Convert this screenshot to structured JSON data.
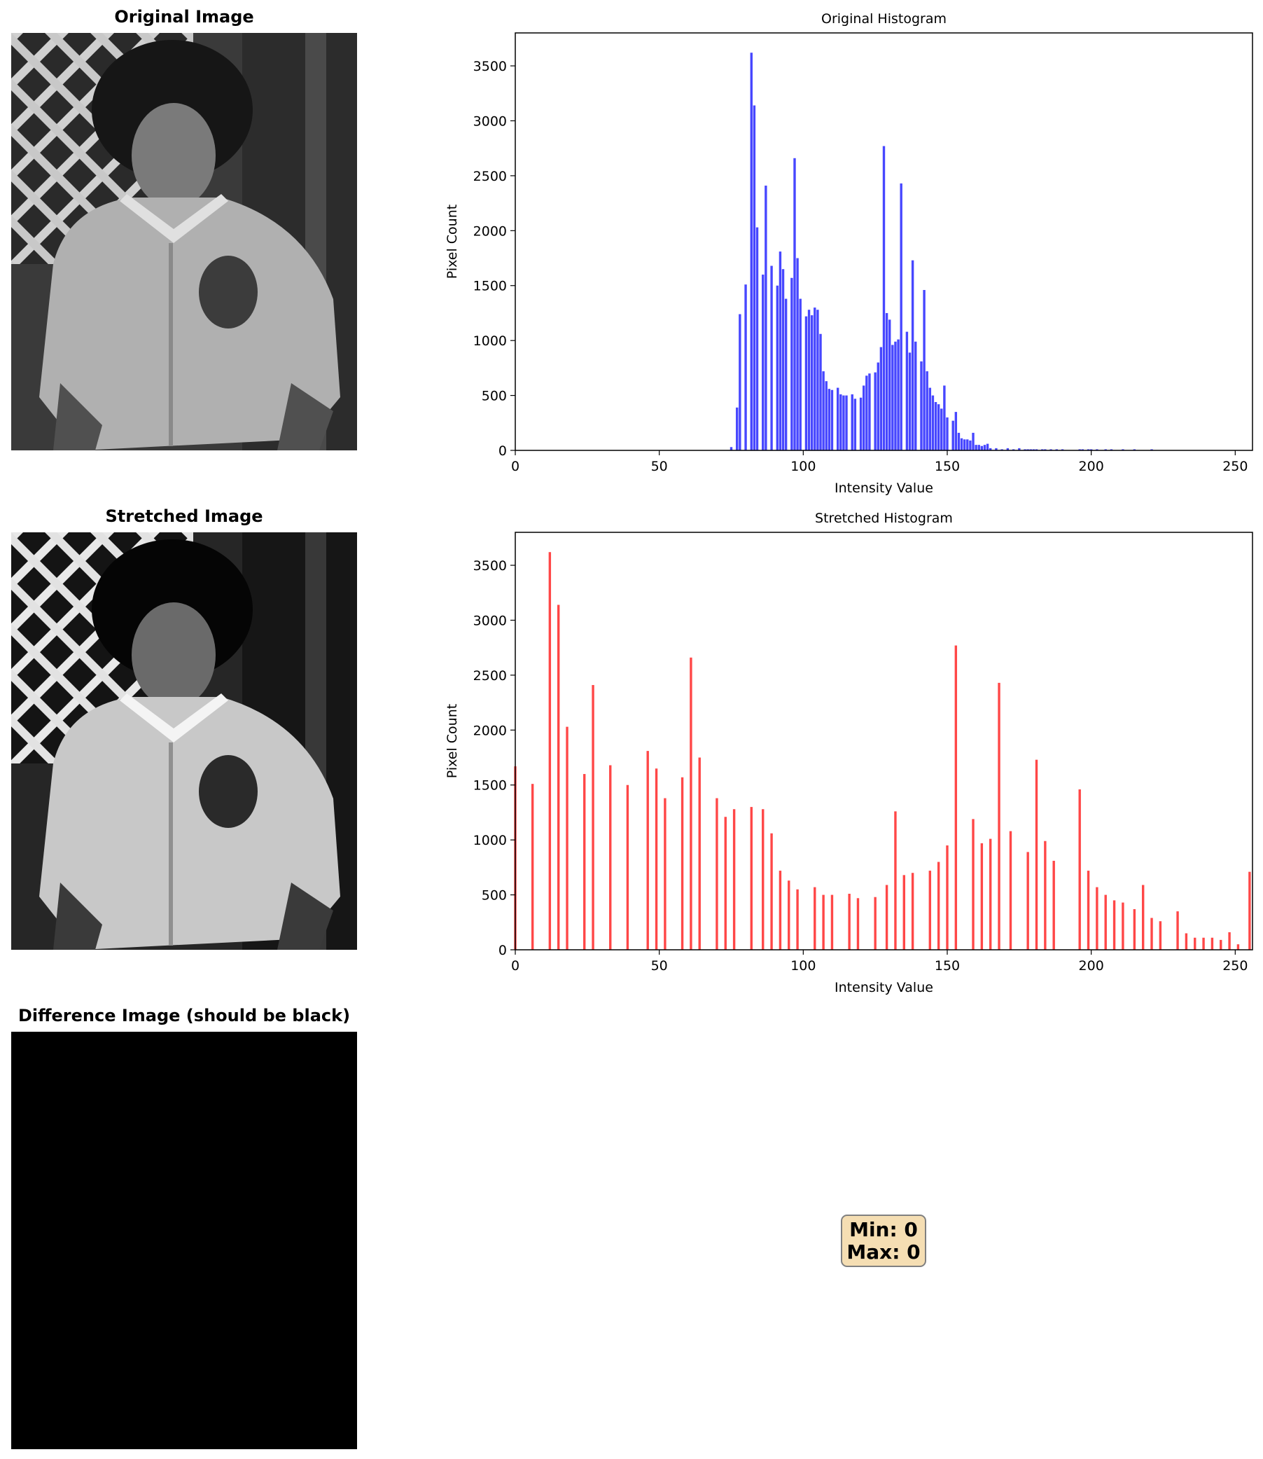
{
  "panels": {
    "original_image_title": "Original Image",
    "stretched_image_title": "Stretched Image",
    "difference_image_title": "Difference Image (should be black)"
  },
  "stats": {
    "min_label": "Min: 0",
    "max_label": "Max: 0"
  },
  "chart_data": [
    {
      "type": "bar",
      "title": "Original Histogram",
      "xlabel": "Intensity Value",
      "ylabel": "Pixel Count",
      "xlim": [
        0,
        256
      ],
      "ylim": [
        0,
        3800
      ],
      "xticks": [
        0,
        50,
        100,
        150,
        200,
        250
      ],
      "yticks": [
        0,
        500,
        1000,
        1500,
        2000,
        2500,
        3000,
        3500
      ],
      "grid": false,
      "color": "#0000ff",
      "x": [
        75,
        77,
        78,
        80,
        82,
        83,
        84,
        86,
        87,
        89,
        91,
        92,
        93,
        94,
        96,
        97,
        98,
        99,
        101,
        102,
        103,
        104,
        105,
        106,
        107,
        108,
        109,
        110,
        112,
        113,
        114,
        115,
        117,
        118,
        120,
        121,
        122,
        123,
        125,
        126,
        127,
        128,
        129,
        130,
        131,
        132,
        133,
        134,
        136,
        137,
        138,
        139,
        141,
        142,
        143,
        144,
        145,
        146,
        147,
        148,
        149,
        150,
        152,
        153,
        154,
        155,
        156,
        157,
        158,
        159,
        160,
        161,
        162,
        163,
        164,
        165,
        167,
        169,
        171,
        173,
        175,
        177,
        178,
        179,
        180,
        181,
        183,
        184,
        186,
        188,
        190,
        196,
        197,
        199,
        200,
        202,
        205,
        207,
        211,
        215,
        221
      ],
      "values": [
        30,
        390,
        1240,
        1510,
        3620,
        3140,
        2030,
        1600,
        2410,
        1680,
        1500,
        1810,
        1650,
        1380,
        1570,
        2660,
        1750,
        1380,
        1220,
        1280,
        1230,
        1300,
        1280,
        1060,
        720,
        630,
        560,
        550,
        570,
        510,
        500,
        500,
        510,
        470,
        480,
        590,
        680,
        700,
        710,
        800,
        940,
        2770,
        1250,
        1190,
        960,
        990,
        1010,
        2430,
        1080,
        890,
        1730,
        990,
        810,
        1460,
        720,
        570,
        500,
        440,
        420,
        380,
        590,
        300,
        270,
        350,
        160,
        110,
        100,
        100,
        90,
        160,
        50,
        50,
        40,
        50,
        60,
        20,
        20,
        10,
        20,
        10,
        20,
        10,
        10,
        10,
        10,
        10,
        10,
        10,
        10,
        10,
        10,
        10,
        10,
        10,
        10,
        10,
        10,
        10,
        10,
        10,
        10
      ]
    },
    {
      "type": "bar",
      "title": "Stretched Histogram",
      "xlabel": "Intensity Value",
      "ylabel": "Pixel Count",
      "xlim": [
        0,
        256
      ],
      "ylim": [
        0,
        3800
      ],
      "xticks": [
        0,
        50,
        100,
        150,
        200,
        250
      ],
      "yticks": [
        0,
        500,
        1000,
        1500,
        2000,
        2500,
        3000,
        3500
      ],
      "grid": false,
      "color": "#ff0000",
      "x": [
        0,
        6,
        12,
        15,
        18,
        24,
        27,
        33,
        39,
        46,
        49,
        52,
        58,
        61,
        64,
        70,
        73,
        76,
        82,
        86,
        89,
        92,
        95,
        98,
        104,
        107,
        110,
        116,
        119,
        125,
        129,
        132,
        135,
        138,
        144,
        147,
        150,
        153,
        159,
        162,
        165,
        168,
        172,
        178,
        181,
        184,
        187,
        196,
        199,
        202,
        205,
        208,
        211,
        215,
        218,
        221,
        224,
        230,
        233,
        236,
        239,
        242,
        245,
        248,
        251,
        255
      ],
      "values": [
        1670,
        1510,
        3620,
        3140,
        2030,
        1600,
        2410,
        1680,
        1500,
        1810,
        1650,
        1380,
        1570,
        2660,
        1750,
        1380,
        1210,
        1280,
        1300,
        1280,
        1060,
        720,
        630,
        550,
        570,
        500,
        500,
        510,
        470,
        480,
        590,
        1260,
        680,
        700,
        720,
        800,
        950,
        2770,
        1190,
        970,
        1010,
        2430,
        1080,
        890,
        1730,
        990,
        810,
        1460,
        720,
        570,
        500,
        450,
        430,
        370,
        590,
        290,
        260,
        350,
        150,
        110,
        110,
        110,
        90,
        160,
        50,
        710
      ]
    }
  ]
}
